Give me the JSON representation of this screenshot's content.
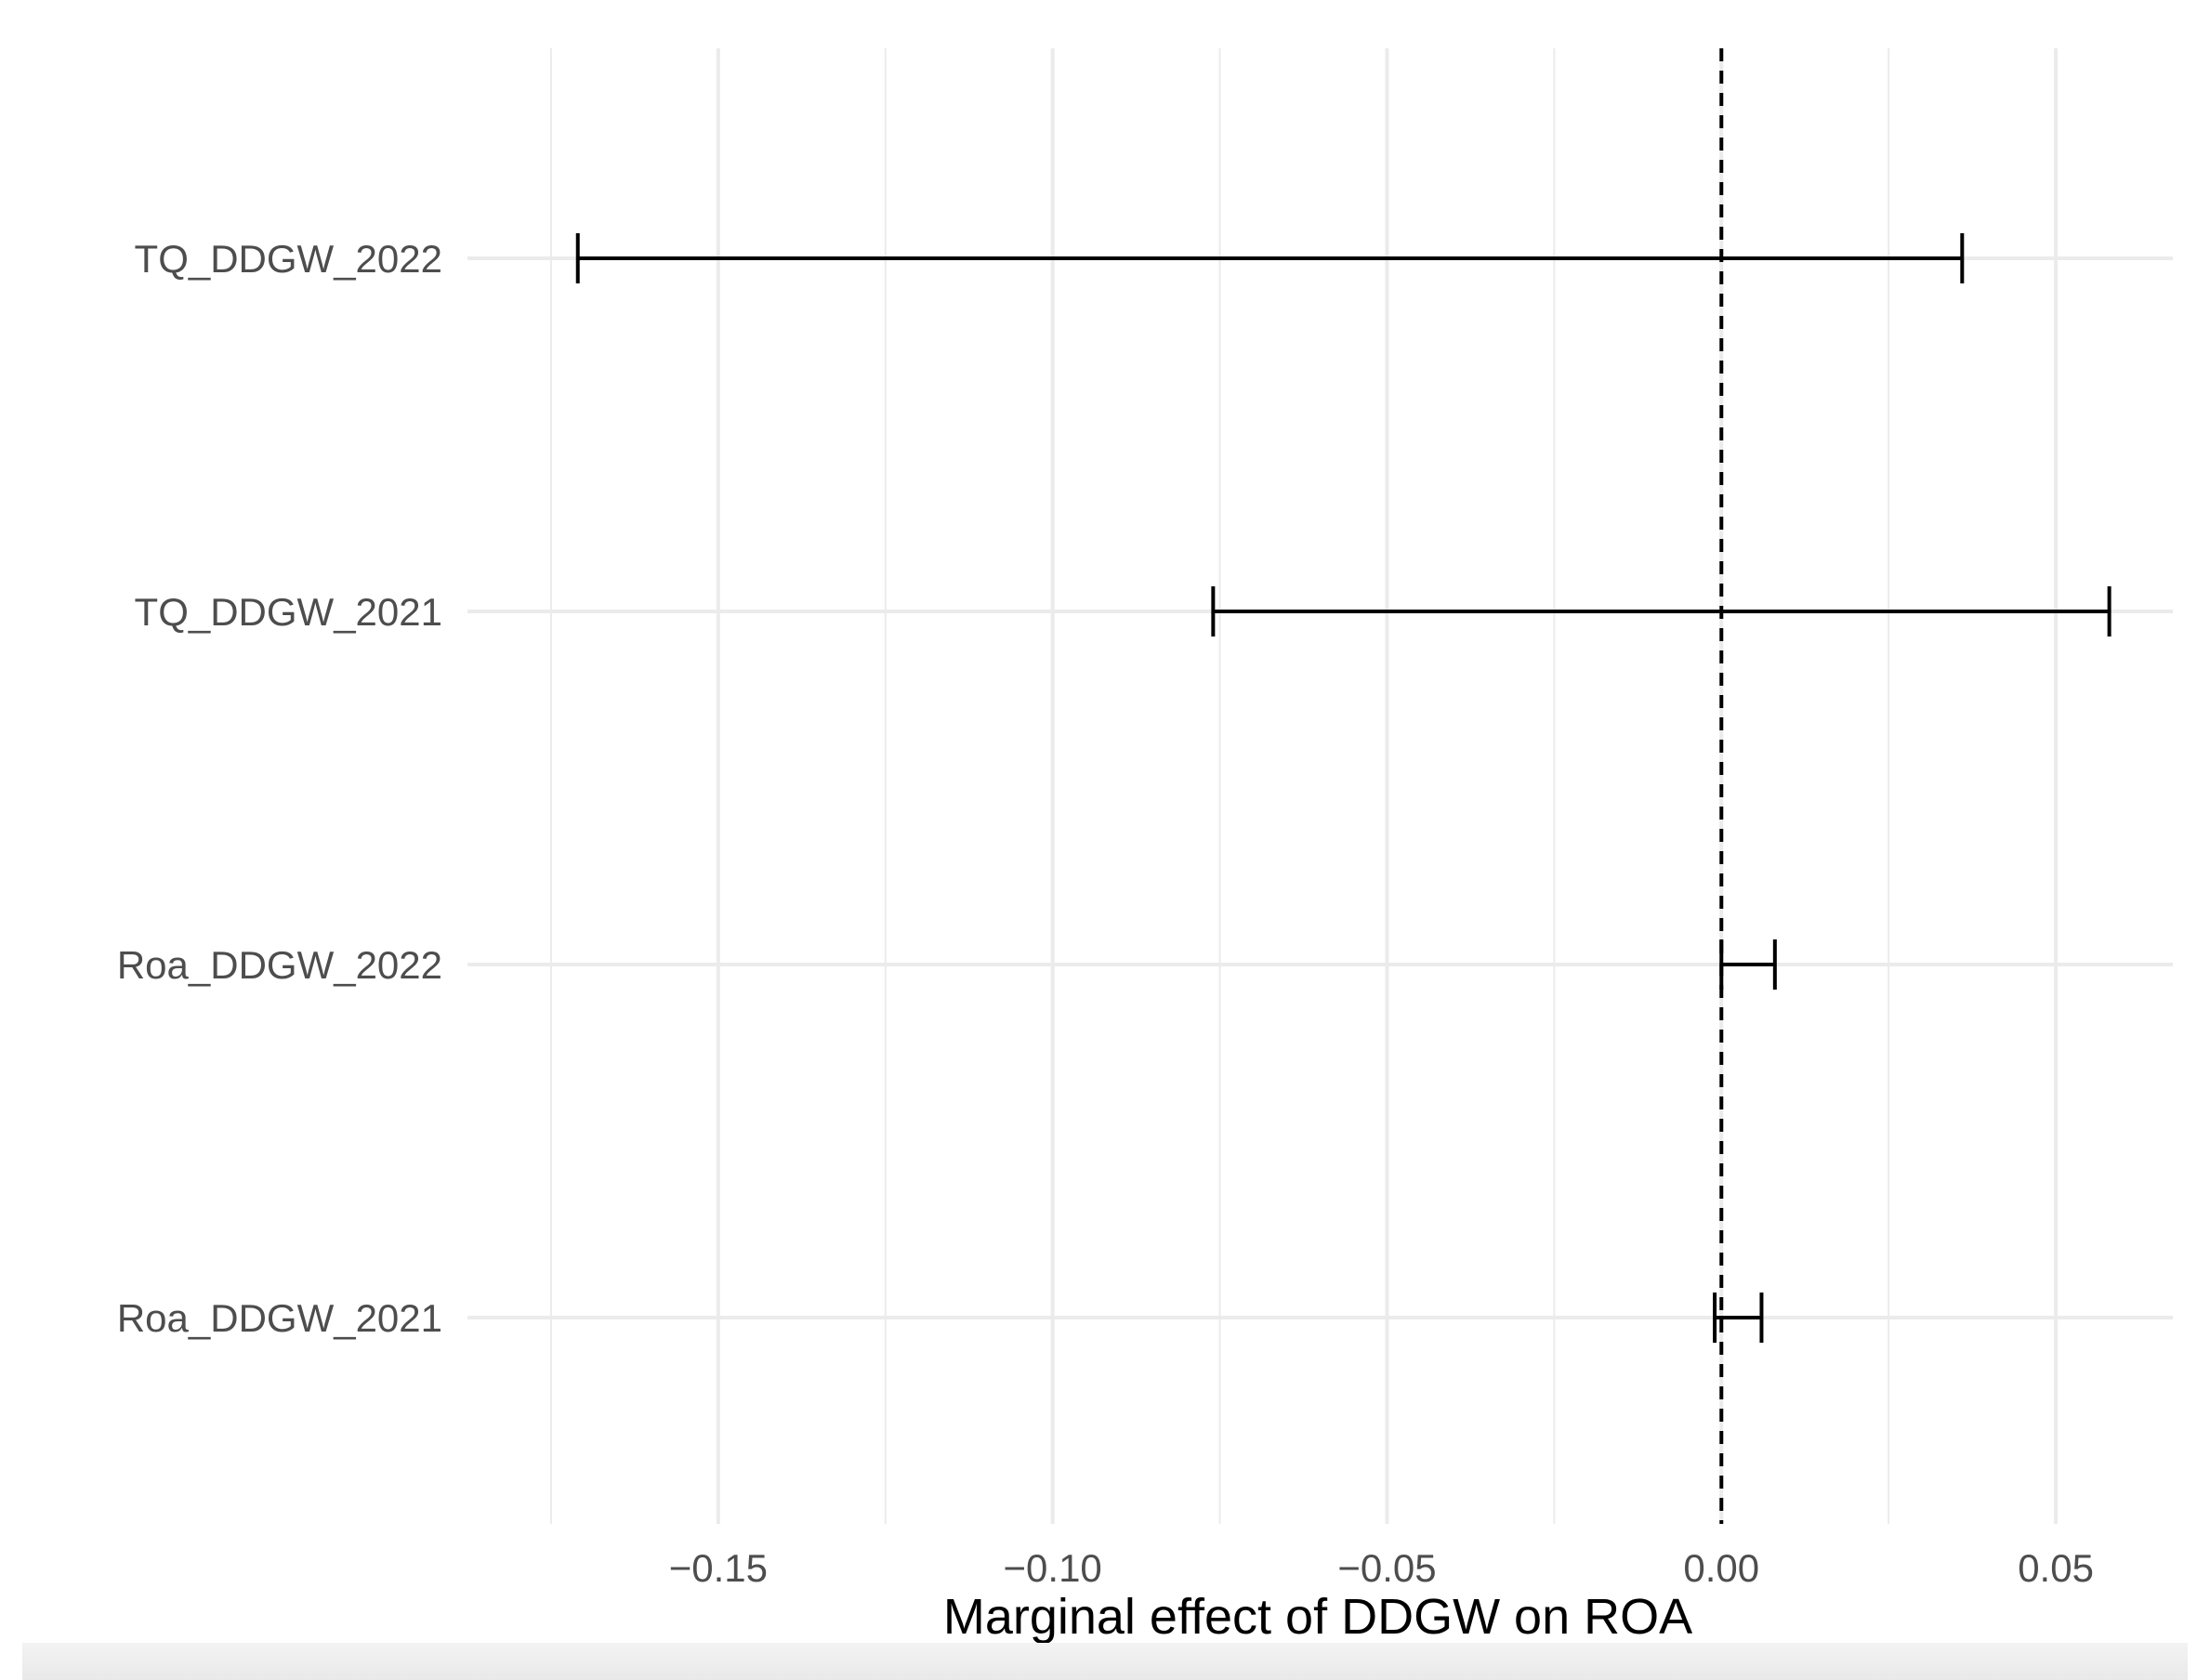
{
  "chart_data": {
    "type": "errorbar",
    "title": "",
    "xlabel": "Marginal effect of DDGW on ROA",
    "ylabel": "",
    "xlim": [
      -0.1875,
      0.0675
    ],
    "x_ticks": [
      -0.15,
      -0.1,
      -0.05,
      0.0,
      0.05
    ],
    "x_tick_labels": [
      "−0.15",
      "−0.10",
      "−0.05",
      "0.00",
      "0.05"
    ],
    "reference_line": {
      "x": 0,
      "style": "dashed"
    },
    "grid": true,
    "categories": [
      "TQ_DDGW_2022",
      "TQ_DDGW_2021",
      "Roa_DDGW_2022",
      "Roa_DDGW_2021"
    ],
    "intervals": [
      {
        "label": "TQ_DDGW_2022",
        "lower": -0.171,
        "upper": 0.036
      },
      {
        "label": "TQ_DDGW_2021",
        "lower": -0.076,
        "upper": 0.058
      },
      {
        "label": "Roa_DDGW_2022",
        "lower": 0.0,
        "upper": 0.008
      },
      {
        "label": "Roa_DDGW_2021",
        "lower": -0.001,
        "upper": 0.006
      }
    ],
    "colors": {
      "interval": "#000000",
      "grid": "#ebebeb",
      "tick_text": "#4d4d4d"
    }
  }
}
